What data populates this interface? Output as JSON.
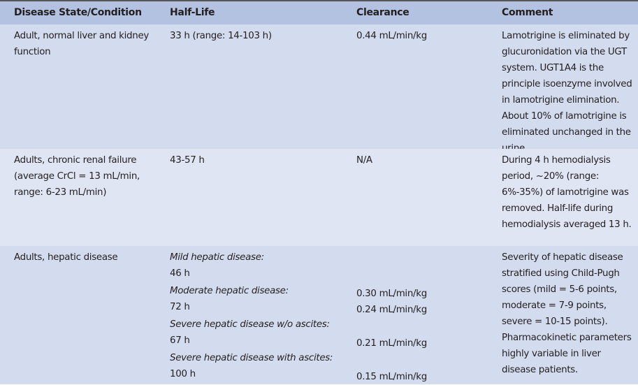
{
  "headers": [
    "Disease State/Condition",
    "Half-Life",
    "Clearance",
    "Comment"
  ],
  "rows": [
    {
      "condition": "Adult, normal liver and kidney function",
      "half_life": "33 h (range: 14-103 h)",
      "clearance": "0.44 mL/min/kg",
      "comment": "Lamotrigine is eliminated by glucuronidation via the UGT system. UGT1A4 is the principle isoenzyme involved in lamotrigine elimination. About 10% of lamotrigine is eliminated unchanged in the urine."
    },
    {
      "condition": "Adults, chronic renal failure (average CrCl = 13 mL/min, range: 6-23 mL/min)",
      "half_life": "43-57 h",
      "clearance": "N/A",
      "comment": "During 4 h hemodialysis period, ~20% (range: 6%-35%) of lamotrigine was removed. Half-life during hemodialysis averaged 13 h."
    },
    {
      "condition": "Adults, hepatic disease",
      "subgroups": [
        {
          "label": "Mild hepatic disease:",
          "half_life": "46 h",
          "clearance": "0.30 mL/min/kg"
        },
        {
          "label": "Moderate hepatic disease:",
          "half_life": "72 h",
          "clearance": "0.24 mL/min/kg"
        },
        {
          "label": "Severe hepatic disease w/o ascites:",
          "half_life": "67 h",
          "clearance": "0.21 mL/min/kg"
        },
        {
          "label": "Severe hepatic disease with ascites:",
          "half_life": "100 h",
          "clearance": "0.15 mL/min/kg"
        }
      ],
      "comment": "Severity of hepatic disease stratified using Child-Pugh scores (mild = 5-6 points, moderate = 7-9 points, severe = 10-15 points). Pharmacokinetic parameters highly variable in liver disease patients."
    }
  ],
  "colors": {
    "header_bg": "#b3c2e0",
    "row_dark": "#d3dbee",
    "row_light": "#dfe5f3"
  }
}
